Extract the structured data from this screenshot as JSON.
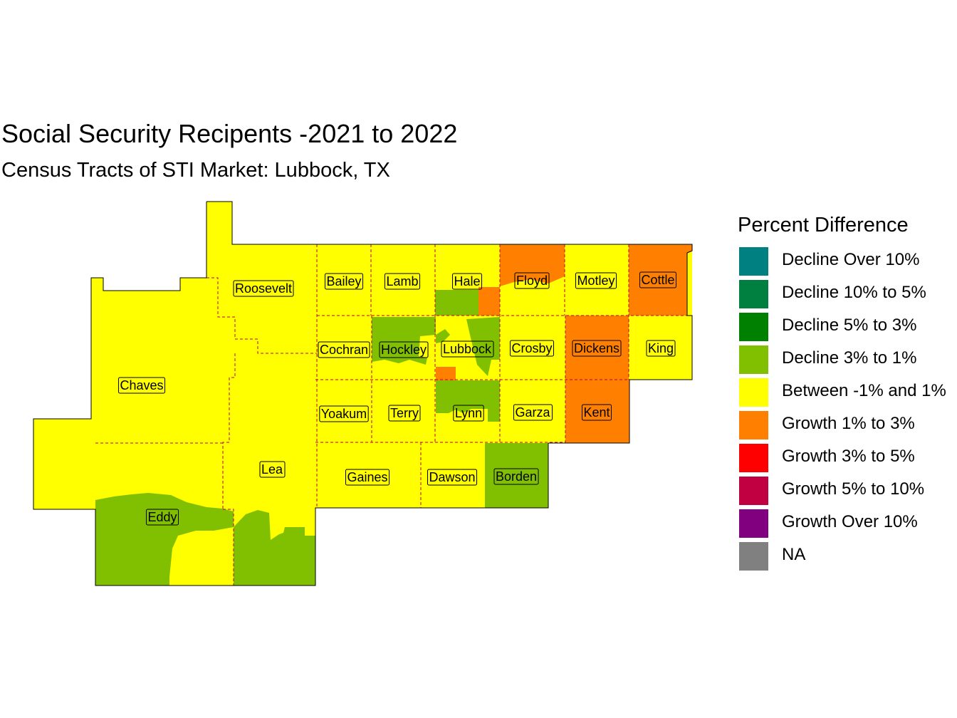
{
  "title": "Social Security Recipents -2021 to 2022",
  "subtitle": "Census Tracts of STI Market: Lubbock, TX",
  "legend": {
    "title": "Percent Difference",
    "items": [
      {
        "label": "Decline Over 10%",
        "color": "#008080"
      },
      {
        "label": "Decline 10% to 5%",
        "color": "#008040"
      },
      {
        "label": "Decline 5% to 3%",
        "color": "#008000"
      },
      {
        "label": "Decline 3% to 1%",
        "color": "#80C000"
      },
      {
        "label": "Between -1% and 1%",
        "color": "#FFFF00"
      },
      {
        "label": "Growth 1% to 3%",
        "color": "#FF8000"
      },
      {
        "label": "Growth 3% to 5%",
        "color": "#FF0000"
      },
      {
        "label": "Growth 5% to 10%",
        "color": "#C00040"
      },
      {
        "label": "Growth Over 10%",
        "color": "#800080"
      },
      {
        "label": "NA",
        "color": "#808080"
      }
    ]
  },
  "counties": [
    {
      "name": "Roosevelt",
      "category": "Between -1% and 1%"
    },
    {
      "name": "Bailey",
      "category": "Between -1% and 1%"
    },
    {
      "name": "Lamb",
      "category": "Between -1% and 1%"
    },
    {
      "name": "Hale",
      "category": "Between -1% and 1%"
    },
    {
      "name": "Floyd",
      "category": "Growth 1% to 3%"
    },
    {
      "name": "Motley",
      "category": "Between -1% and 1%"
    },
    {
      "name": "Cottle",
      "category": "Growth 1% to 3%"
    },
    {
      "name": "Chaves",
      "category": "Between -1% and 1%"
    },
    {
      "name": "Cochran",
      "category": "Between -1% and 1%"
    },
    {
      "name": "Hockley",
      "category": "Decline 3% to 1%"
    },
    {
      "name": "Lubbock",
      "category": "Between -1% and 1%"
    },
    {
      "name": "Crosby",
      "category": "Between -1% and 1%"
    },
    {
      "name": "Dickens",
      "category": "Growth 1% to 3%"
    },
    {
      "name": "King",
      "category": "Between -1% and 1%"
    },
    {
      "name": "Yoakum",
      "category": "Between -1% and 1%"
    },
    {
      "name": "Terry",
      "category": "Between -1% and 1%"
    },
    {
      "name": "Lynn",
      "category": "Decline 3% to 1%"
    },
    {
      "name": "Garza",
      "category": "Between -1% and 1%"
    },
    {
      "name": "Kent",
      "category": "Growth 1% to 3%"
    },
    {
      "name": "Lea",
      "category": "Between -1% and 1%"
    },
    {
      "name": "Gaines",
      "category": "Between -1% and 1%"
    },
    {
      "name": "Dawson",
      "category": "Between -1% and 1%"
    },
    {
      "name": "Borden",
      "category": "Decline 3% to 1%"
    },
    {
      "name": "Eddy",
      "category": "Decline 3% to 1%"
    }
  ]
}
